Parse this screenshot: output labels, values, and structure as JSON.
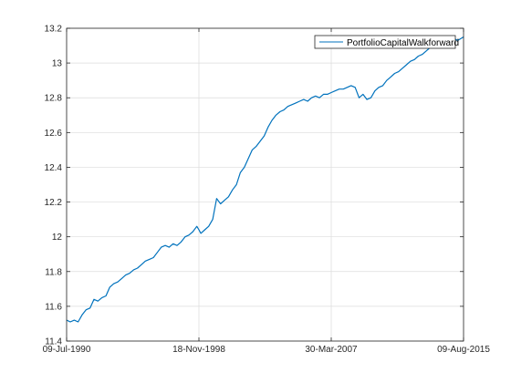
{
  "chart_data": {
    "type": "line",
    "title": "",
    "xlabel": "",
    "ylabel": "",
    "x_ticks": [
      "09-Jul-1990",
      "18-Nov-1998",
      "30-Mar-2007",
      "09-Aug-2015"
    ],
    "y_ticks": [
      "11.4",
      "11.6",
      "11.8",
      "12",
      "12.2",
      "12.4",
      "12.6",
      "12.8",
      "13",
      "13.2"
    ],
    "xlim": [
      "1990-07-09",
      "2015-08-09"
    ],
    "ylim": [
      11.4,
      13.2
    ],
    "grid": true,
    "legend_position": "top-right",
    "series": [
      {
        "name": "PortfolioCapitalWalkforward",
        "color": "#0072bd",
        "points": [
          [
            "1990-07-09",
            11.52
          ],
          [
            "1990-10-01",
            11.51
          ],
          [
            "1991-01-01",
            11.52
          ],
          [
            "1991-04-01",
            11.51
          ],
          [
            "1991-07-01",
            11.55
          ],
          [
            "1991-10-01",
            11.58
          ],
          [
            "1992-01-01",
            11.59
          ],
          [
            "1992-04-01",
            11.64
          ],
          [
            "1992-07-01",
            11.63
          ],
          [
            "1992-10-01",
            11.65
          ],
          [
            "1993-01-01",
            11.66
          ],
          [
            "1993-04-01",
            11.71
          ],
          [
            "1993-07-01",
            11.73
          ],
          [
            "1993-10-01",
            11.74
          ],
          [
            "1994-01-01",
            11.76
          ],
          [
            "1994-04-01",
            11.78
          ],
          [
            "1994-07-01",
            11.79
          ],
          [
            "1994-10-01",
            11.81
          ],
          [
            "1995-01-01",
            11.82
          ],
          [
            "1995-04-01",
            11.84
          ],
          [
            "1995-07-01",
            11.86
          ],
          [
            "1995-10-01",
            11.87
          ],
          [
            "1996-01-01",
            11.88
          ],
          [
            "1996-04-01",
            11.91
          ],
          [
            "1996-07-01",
            11.94
          ],
          [
            "1996-10-01",
            11.95
          ],
          [
            "1997-01-01",
            11.94
          ],
          [
            "1997-04-01",
            11.96
          ],
          [
            "1997-07-01",
            11.95
          ],
          [
            "1997-10-01",
            11.97
          ],
          [
            "1998-01-01",
            12.0
          ],
          [
            "1998-04-01",
            12.01
          ],
          [
            "1998-07-01",
            12.03
          ],
          [
            "1998-10-01",
            12.06
          ],
          [
            "1998-11-18",
            12.04
          ],
          [
            "1999-01-01",
            12.02
          ],
          [
            "1999-04-01",
            12.04
          ],
          [
            "1999-07-01",
            12.06
          ],
          [
            "1999-10-01",
            12.1
          ],
          [
            "2000-01-01",
            12.22
          ],
          [
            "2000-04-01",
            12.19
          ],
          [
            "2000-07-01",
            12.21
          ],
          [
            "2000-10-01",
            12.23
          ],
          [
            "2001-01-01",
            12.27
          ],
          [
            "2001-04-01",
            12.3
          ],
          [
            "2001-07-01",
            12.37
          ],
          [
            "2001-10-01",
            12.4
          ],
          [
            "2002-01-01",
            12.45
          ],
          [
            "2002-04-01",
            12.5
          ],
          [
            "2002-07-01",
            12.52
          ],
          [
            "2002-10-01",
            12.55
          ],
          [
            "2003-01-01",
            12.58
          ],
          [
            "2003-04-01",
            12.63
          ],
          [
            "2003-07-01",
            12.67
          ],
          [
            "2003-10-01",
            12.7
          ],
          [
            "2004-01-01",
            12.72
          ],
          [
            "2004-04-01",
            12.73
          ],
          [
            "2004-07-01",
            12.75
          ],
          [
            "2004-10-01",
            12.76
          ],
          [
            "2005-01-01",
            12.77
          ],
          [
            "2005-04-01",
            12.78
          ],
          [
            "2005-07-01",
            12.79
          ],
          [
            "2005-10-01",
            12.78
          ],
          [
            "2006-01-01",
            12.8
          ],
          [
            "2006-04-01",
            12.81
          ],
          [
            "2006-07-01",
            12.8
          ],
          [
            "2006-10-01",
            12.82
          ],
          [
            "2007-01-01",
            12.82
          ],
          [
            "2007-03-30",
            12.83
          ],
          [
            "2007-07-01",
            12.84
          ],
          [
            "2007-10-01",
            12.85
          ],
          [
            "2008-01-01",
            12.85
          ],
          [
            "2008-04-01",
            12.86
          ],
          [
            "2008-07-01",
            12.87
          ],
          [
            "2008-10-01",
            12.86
          ],
          [
            "2009-01-01",
            12.8
          ],
          [
            "2009-04-01",
            12.82
          ],
          [
            "2009-07-01",
            12.79
          ],
          [
            "2009-10-01",
            12.8
          ],
          [
            "2010-01-01",
            12.84
          ],
          [
            "2010-04-01",
            12.86
          ],
          [
            "2010-07-01",
            12.87
          ],
          [
            "2010-10-01",
            12.9
          ],
          [
            "2011-01-01",
            12.92
          ],
          [
            "2011-04-01",
            12.94
          ],
          [
            "2011-07-01",
            12.95
          ],
          [
            "2011-10-01",
            12.97
          ],
          [
            "2012-01-01",
            12.99
          ],
          [
            "2012-04-01",
            13.01
          ],
          [
            "2012-07-01",
            13.02
          ],
          [
            "2012-10-01",
            13.04
          ],
          [
            "2013-01-01",
            13.05
          ],
          [
            "2013-04-01",
            13.07
          ],
          [
            "2013-07-01",
            13.09
          ],
          [
            "2013-10-01",
            13.1
          ],
          [
            "2014-01-01",
            13.12
          ],
          [
            "2014-04-01",
            13.11
          ],
          [
            "2014-07-01",
            13.14
          ],
          [
            "2014-10-01",
            13.15
          ],
          [
            "2015-01-01",
            13.14
          ],
          [
            "2015-04-01",
            13.13
          ],
          [
            "2015-08-09",
            13.15
          ]
        ]
      }
    ]
  }
}
